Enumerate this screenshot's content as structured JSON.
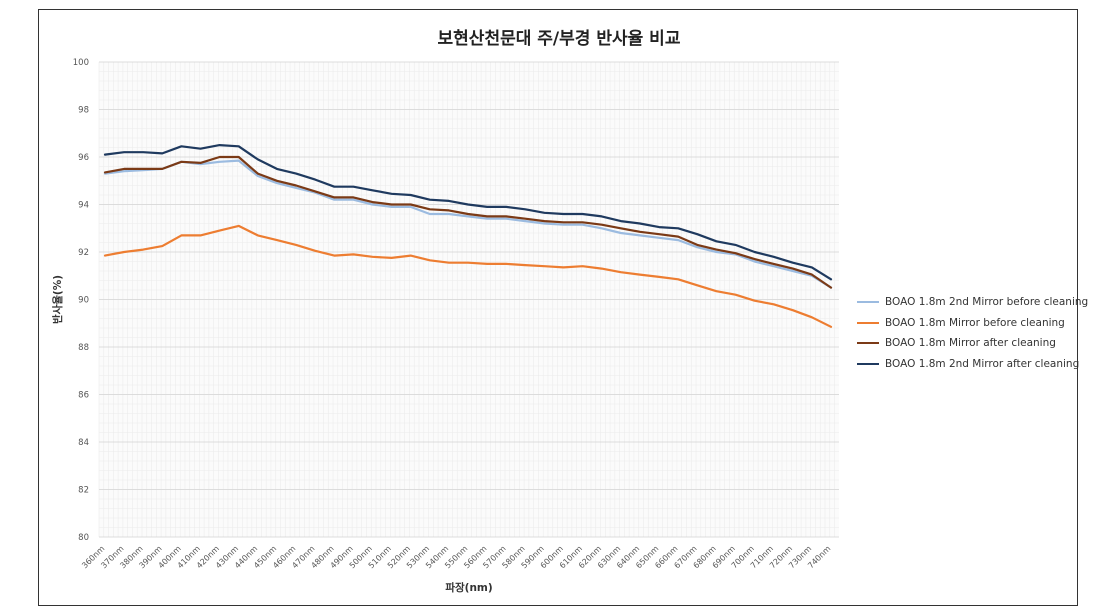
{
  "chart_data": {
    "type": "line",
    "title": "보현산천문대 주/부경 반사율 비교",
    "xlabel": "파장(nm)",
    "ylabel": "반사율(%)",
    "ylim": [
      80,
      100
    ],
    "yticks": [
      80,
      82,
      84,
      86,
      88,
      90,
      92,
      94,
      96,
      98,
      100
    ],
    "grid": true,
    "legend_position": "right",
    "categories": [
      "360nm",
      "370nm",
      "380nm",
      "390nm",
      "400nm",
      "410nm",
      "420nm",
      "430nm",
      "440nm",
      "450nm",
      "460nm",
      "470nm",
      "480nm",
      "490nm",
      "500nm",
      "510nm",
      "520nm",
      "530nm",
      "540nm",
      "550nm",
      "560nm",
      "570nm",
      "580nm",
      "590nm",
      "600nm",
      "610nm",
      "620nm",
      "630nm",
      "640nm",
      "650nm",
      "660nm",
      "670nm",
      "680nm",
      "690nm",
      "700nm",
      "710nm",
      "720nm",
      "730nm",
      "740nm"
    ],
    "series": [
      {
        "name": "BOAO 1.8m 2nd Mirror before cleaning",
        "color": "#9bbbe0",
        "values": [
          95.3,
          95.4,
          95.45,
          95.5,
          95.8,
          95.7,
          95.8,
          95.85,
          95.2,
          94.9,
          94.7,
          94.5,
          94.2,
          94.2,
          94.0,
          93.9,
          93.9,
          93.6,
          93.6,
          93.5,
          93.4,
          93.4,
          93.3,
          93.2,
          93.15,
          93.15,
          93.0,
          92.8,
          92.7,
          92.6,
          92.5,
          92.2,
          92.0,
          91.9,
          91.6,
          91.4,
          91.2,
          91.0,
          90.5
        ]
      },
      {
        "name": "BOAO 1.8m Mirror before cleaning",
        "color": "#ed7d31",
        "values": [
          91.85,
          92.0,
          92.1,
          92.25,
          92.7,
          92.7,
          92.9,
          93.1,
          92.7,
          92.5,
          92.3,
          92.05,
          91.85,
          91.9,
          91.8,
          91.75,
          91.85,
          91.65,
          91.55,
          91.55,
          91.5,
          91.5,
          91.45,
          91.4,
          91.35,
          91.4,
          91.3,
          91.15,
          91.05,
          90.95,
          90.85,
          90.6,
          90.35,
          90.2,
          89.95,
          89.8,
          89.55,
          89.25,
          88.85
        ]
      },
      {
        "name": "BOAO 1.8m Mirror after cleaning",
        "color": "#7b3a16",
        "values": [
          95.35,
          95.5,
          95.5,
          95.5,
          95.8,
          95.75,
          96.0,
          96.0,
          95.3,
          95.0,
          94.8,
          94.55,
          94.3,
          94.3,
          94.1,
          94.0,
          94.0,
          93.8,
          93.75,
          93.6,
          93.5,
          93.5,
          93.4,
          93.3,
          93.25,
          93.25,
          93.15,
          93.0,
          92.85,
          92.75,
          92.65,
          92.3,
          92.1,
          91.95,
          91.7,
          91.5,
          91.3,
          91.05,
          90.5
        ]
      },
      {
        "name": "BOAO 1.8m 2nd Mirror after cleaning",
        "color": "#1f3a5f",
        "values": [
          96.1,
          96.2,
          96.2,
          96.15,
          96.45,
          96.35,
          96.5,
          96.45,
          95.9,
          95.5,
          95.3,
          95.05,
          94.75,
          94.75,
          94.6,
          94.45,
          94.4,
          94.2,
          94.15,
          94.0,
          93.9,
          93.9,
          93.8,
          93.65,
          93.6,
          93.6,
          93.5,
          93.3,
          93.2,
          93.05,
          93.0,
          92.75,
          92.45,
          92.3,
          92.0,
          91.8,
          91.55,
          91.35,
          90.85
        ]
      }
    ]
  }
}
